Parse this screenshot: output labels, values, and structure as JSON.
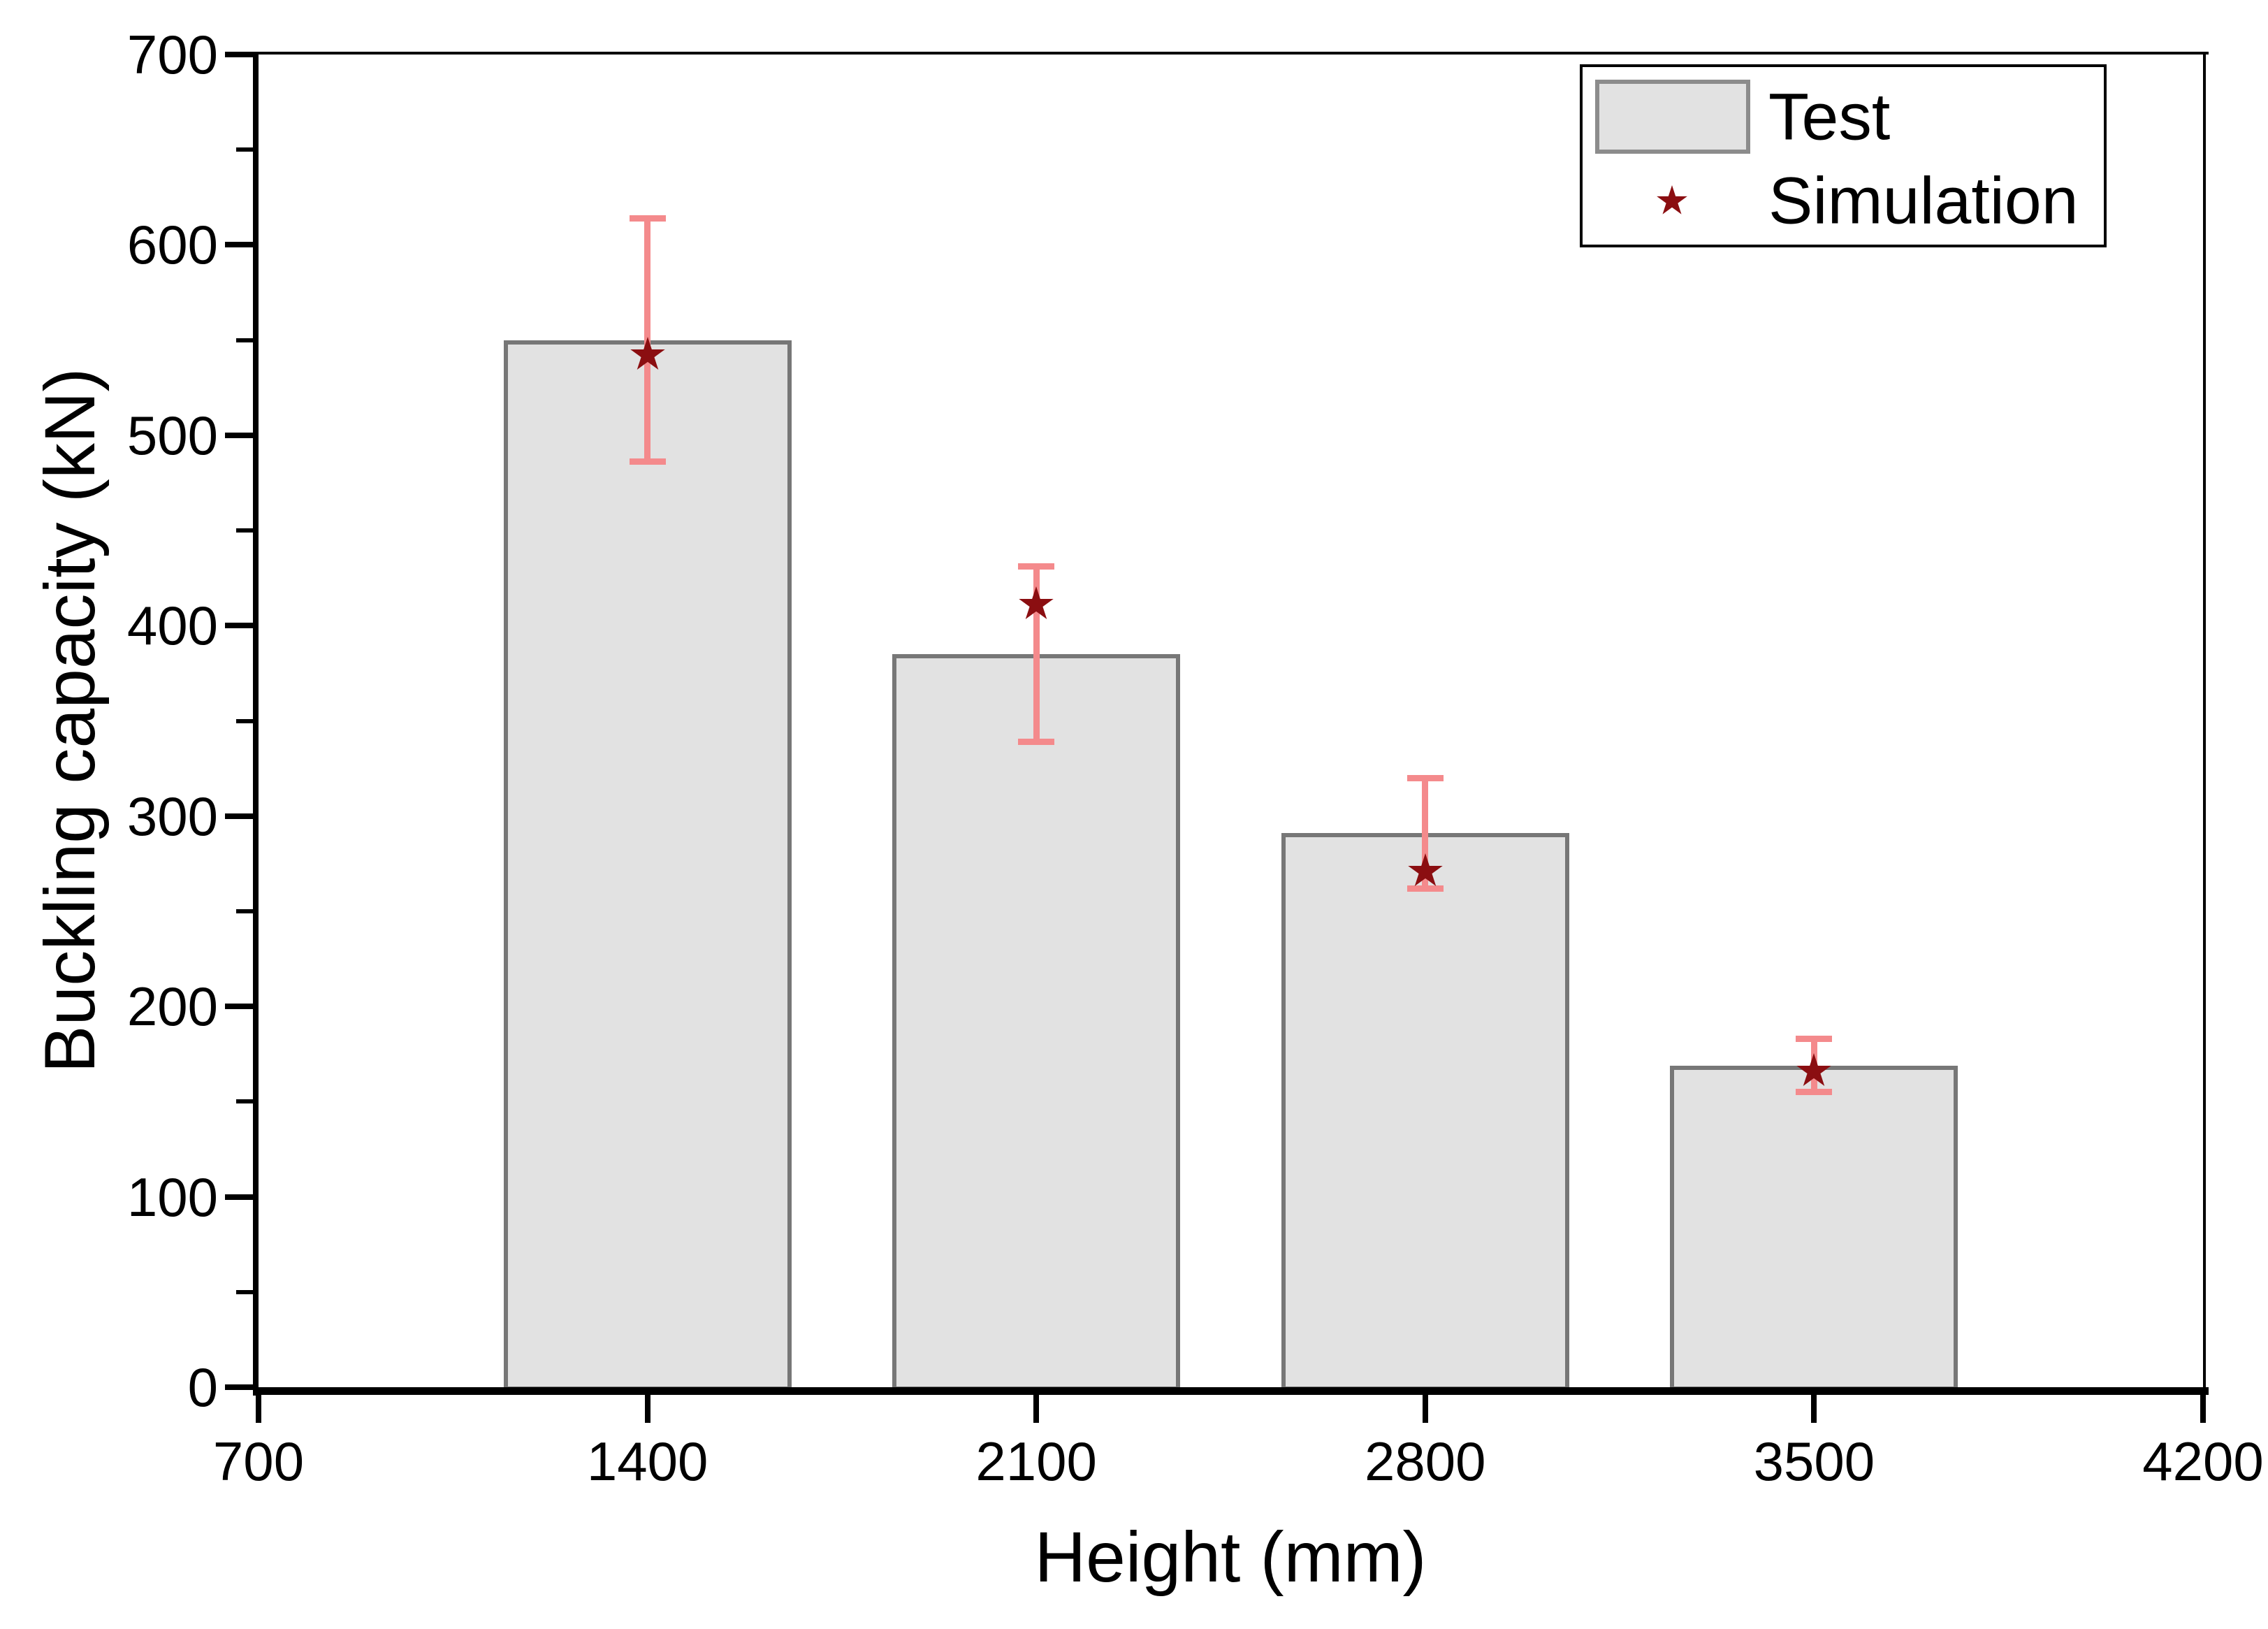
{
  "chart_data": {
    "type": "bar",
    "title": "",
    "xlabel": "Height (mm)",
    "ylabel": "Buckling capacity (kN)",
    "categories": [
      1400,
      2100,
      2800,
      3500
    ],
    "series": [
      {
        "name": "Test",
        "type": "bar",
        "values": [
          550,
          385,
          291,
          169
        ],
        "error_plus": [
          64,
          46,
          29,
          14
        ],
        "error_minus": [
          64,
          46,
          29,
          14
        ],
        "fill_color": "#e2e2e2",
        "edge_color": "#777777"
      },
      {
        "name": "Simulation",
        "type": "scatter",
        "marker": "star",
        "values": [
          542,
          411,
          271,
          166
        ],
        "color": "#8b0e11"
      }
    ],
    "xlim": [
      700,
      4200
    ],
    "ylim": [
      0,
      700
    ],
    "x_ticks": [
      700,
      1400,
      2100,
      2800,
      3500,
      4200
    ],
    "y_ticks": [
      0,
      100,
      200,
      300,
      400,
      500,
      600,
      700
    ],
    "y_minor_ticks": [
      50,
      150,
      250,
      350,
      450,
      550,
      650
    ],
    "grid": false,
    "legend_position": "top-right",
    "error_bar_color": "#f48a8c",
    "bar_width_fraction": 0.74
  },
  "legend": {
    "items": [
      {
        "label": "Test",
        "swatch": "gray-rect"
      },
      {
        "label": "Simulation",
        "swatch": "dark-red-star"
      }
    ]
  }
}
